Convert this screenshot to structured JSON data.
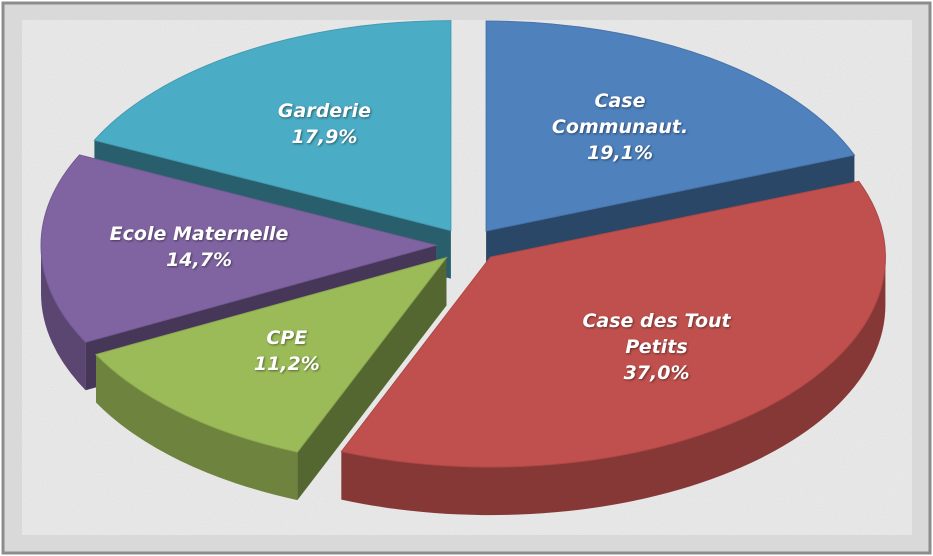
{
  "chart_data": {
    "type": "pie",
    "categories": [
      "Case Communaut.",
      "Case des Tout Petits",
      "CPE",
      "Ecole Maternelle",
      "Garderie"
    ],
    "values": [
      19.1,
      37.0,
      11.2,
      14.7,
      17.9
    ],
    "value_labels": [
      "19,1%",
      "37,0%",
      "11,2%",
      "14,7%",
      "17,9%"
    ],
    "colors": [
      "#4f81bd",
      "#c0504d",
      "#9bbb59",
      "#8064a2",
      "#4bacc6"
    ]
  }
}
